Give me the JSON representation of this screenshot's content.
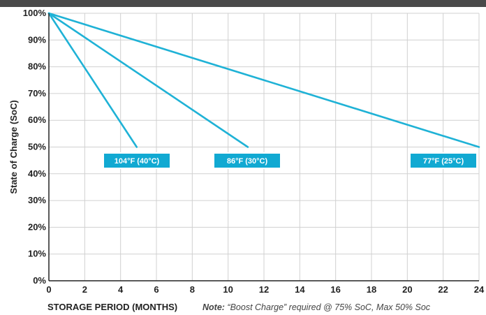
{
  "colors": {
    "band": "#4a4a4a",
    "line": "#1fb2d6",
    "grid": "#d0d0d0",
    "axis": "#222222",
    "badge": "#11a9d2",
    "badge_border": "#ffffff"
  },
  "chart_data": {
    "type": "line",
    "title": "",
    "xlabel": "STORAGE PERIOD (MONTHS)",
    "ylabel": "State of Charge (SoC)",
    "note_lead": "Note:",
    "note_text": " “Boost Charge” required @ 75% SoC, Max 50% Soc",
    "xlim": [
      0,
      24
    ],
    "ylim": [
      0,
      100
    ],
    "x_ticks": [
      0,
      2,
      4,
      6,
      8,
      10,
      12,
      14,
      16,
      18,
      20,
      22,
      24
    ],
    "x_tick_labels": [
      "0",
      "2",
      "4",
      "6",
      "8",
      "10",
      "12",
      "14",
      "16",
      "18",
      "20",
      "22",
      "24"
    ],
    "y_ticks": [
      0,
      10,
      20,
      30,
      40,
      50,
      60,
      70,
      80,
      90,
      100
    ],
    "y_tick_labels": [
      "0%",
      "10%",
      "20%",
      "30%",
      "40%",
      "50%",
      "60%",
      "70%",
      "80%",
      "90%",
      "100%"
    ],
    "grid": true,
    "series": [
      {
        "name": "104°F (40°C)",
        "x": [
          0,
          4.9
        ],
        "y": [
          100,
          50
        ]
      },
      {
        "name": "86°F (30°C)",
        "x": [
          0,
          11.1
        ],
        "y": [
          100,
          50
        ]
      },
      {
        "name": "77°F (25°C)",
        "x": [
          0,
          24
        ],
        "y": [
          100,
          50
        ]
      }
    ]
  }
}
